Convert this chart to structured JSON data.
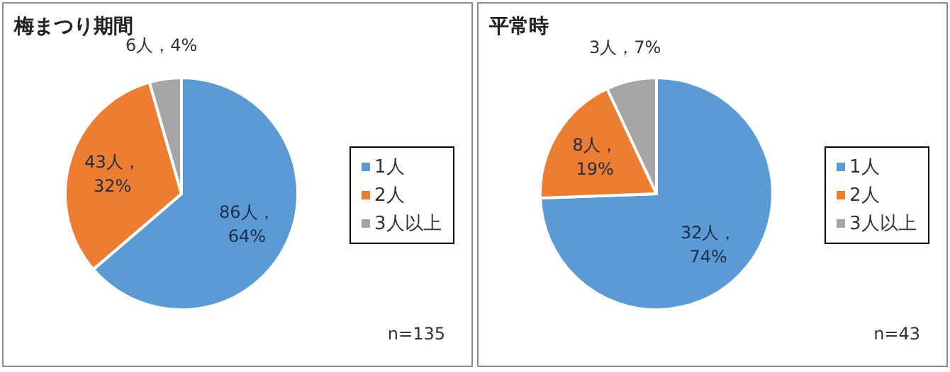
{
  "chart_data": [
    {
      "type": "pie",
      "title": "梅まつり期間",
      "categories": [
        "1人",
        "2人",
        "3人以上"
      ],
      "values": [
        86,
        43,
        6
      ],
      "colors": [
        "#5b9bd5",
        "#ed7d31",
        "#a5a5a5"
      ],
      "value_labels": [
        "86人，64%",
        "43人，32%",
        "6人，4%"
      ],
      "legend": "right",
      "annotations": [
        "n=135"
      ]
    },
    {
      "type": "pie",
      "title": "平常時",
      "categories": [
        "1人",
        "2人",
        "3人以上"
      ],
      "values": [
        32,
        8,
        3
      ],
      "colors": [
        "#5b9bd5",
        "#ed7d31",
        "#a5a5a5"
      ],
      "value_labels": [
        "32人，74%",
        "8人，19%",
        "3人，7%"
      ],
      "legend": "right",
      "annotations": [
        "n=43"
      ]
    }
  ]
}
